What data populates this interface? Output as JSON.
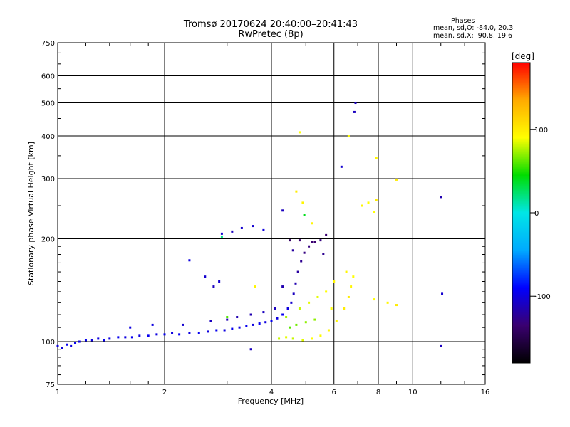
{
  "chart_data": {
    "type": "scatter",
    "title": "Tromsø 20170624 20:40:00–20:41:43",
    "subtitle": "RwPretec (8p)",
    "xlabel": "Frequency [MHz]",
    "ylabel": "Stationary phase Virtual Height [km]",
    "x_scale": "log",
    "y_scale": "log",
    "xlim": [
      1,
      16
    ],
    "ylim": [
      75,
      750
    ],
    "x_ticks": [
      1,
      2,
      4,
      6,
      8,
      10,
      16
    ],
    "y_ticks": [
      75,
      100,
      200,
      300,
      400,
      500,
      600,
      750
    ],
    "grid": true,
    "stats": {
      "heading": "Phases",
      "o_line": "mean, sd,O: -84.0, 20.3",
      "x_line": "mean, sd,X:  90.8, 19.6"
    },
    "colorbar": {
      "label": "[deg]",
      "range": [
        -180,
        180
      ],
      "ticks": [
        100,
        0,
        -100
      ],
      "colors": [
        "#000000",
        "#3a0070",
        "#0000ff",
        "#00aaff",
        "#00e6e6",
        "#00dd00",
        "#ffff00",
        "#ffaa00",
        "#ff0000"
      ]
    },
    "series": [
      {
        "values": [
          [
            1.0,
            97,
            -100
          ],
          [
            1.03,
            96,
            -100
          ],
          [
            1.06,
            98,
            -95
          ],
          [
            1.09,
            97,
            -100
          ],
          [
            1.12,
            99,
            -95
          ],
          [
            1.15,
            100,
            -100
          ],
          [
            1.2,
            101,
            -95
          ],
          [
            1.25,
            101,
            -100
          ],
          [
            1.3,
            102,
            -100
          ],
          [
            1.35,
            101,
            -95
          ],
          [
            1.4,
            102,
            -100
          ],
          [
            1.48,
            103,
            -95
          ],
          [
            1.55,
            103,
            -100
          ],
          [
            1.62,
            103,
            -95
          ],
          [
            1.7,
            104,
            -100
          ],
          [
            1.8,
            104,
            -95
          ],
          [
            1.9,
            105,
            -100
          ],
          [
            2.0,
            105,
            -95
          ],
          [
            2.1,
            106,
            -100
          ],
          [
            2.2,
            105,
            -95
          ],
          [
            2.35,
            106,
            -100
          ],
          [
            2.5,
            106,
            -95
          ],
          [
            2.65,
            107,
            -100
          ],
          [
            2.8,
            108,
            -95
          ],
          [
            2.95,
            108,
            -100
          ],
          [
            3.1,
            109,
            -95
          ],
          [
            3.25,
            110,
            -100
          ],
          [
            3.4,
            111,
            -95
          ],
          [
            3.55,
            112,
            -100
          ],
          [
            3.7,
            113,
            -95
          ],
          [
            3.85,
            114,
            -100
          ],
          [
            4.0,
            115,
            -95
          ],
          [
            4.15,
            117,
            -100
          ],
          [
            4.3,
            120,
            -95
          ],
          [
            4.45,
            125,
            -100
          ],
          [
            4.55,
            130,
            -105
          ],
          [
            4.62,
            138,
            -110
          ],
          [
            4.68,
            148,
            -115
          ],
          [
            4.75,
            160,
            -120
          ],
          [
            4.85,
            172,
            -125
          ],
          [
            4.95,
            182,
            -130
          ],
          [
            5.1,
            190,
            -130
          ],
          [
            5.3,
            196,
            -135
          ],
          [
            5.5,
            198,
            -130
          ],
          [
            1.6,
            110,
            -100
          ],
          [
            1.85,
            112,
            -100
          ],
          [
            2.25,
            112,
            -105
          ],
          [
            2.7,
            115,
            -110
          ],
          [
            3.0,
            116,
            -115
          ],
          [
            3.2,
            118,
            -115
          ],
          [
            3.5,
            120,
            -115
          ],
          [
            3.8,
            122,
            -110
          ],
          [
            4.1,
            125,
            -110
          ],
          [
            2.9,
            207,
            -105
          ],
          [
            3.1,
            210,
            -110
          ],
          [
            3.3,
            215,
            -105
          ],
          [
            3.55,
            218,
            -105
          ],
          [
            3.8,
            212,
            -100
          ],
          [
            4.3,
            242,
            -110
          ],
          [
            4.5,
            198,
            -140
          ],
          [
            4.8,
            198,
            -135
          ],
          [
            5.2,
            196,
            -135
          ],
          [
            5.7,
            205,
            -135
          ],
          [
            6.3,
            325,
            -105
          ],
          [
            6.9,
            500,
            -110
          ],
          [
            6.85,
            470,
            -110
          ],
          [
            12.0,
            265,
            -115
          ],
          [
            12.1,
            138,
            -105
          ],
          [
            12.0,
            97,
            -110
          ],
          [
            2.35,
            173,
            -100
          ],
          [
            2.6,
            155,
            -105
          ],
          [
            2.75,
            145,
            -110
          ],
          [
            2.85,
            150,
            -105
          ],
          [
            3.5,
            95,
            -110
          ],
          [
            4.6,
            185,
            -120
          ],
          [
            5.6,
            180,
            -125
          ],
          [
            4.3,
            145,
            -115
          ]
        ]
      },
      {
        "values": [
          [
            4.2,
            102,
            80
          ],
          [
            4.4,
            103,
            85
          ],
          [
            4.6,
            102,
            80
          ],
          [
            4.9,
            101,
            85
          ],
          [
            5.2,
            102,
            90
          ],
          [
            5.5,
            104,
            90
          ],
          [
            5.8,
            108,
            95
          ],
          [
            6.1,
            115,
            95
          ],
          [
            6.4,
            125,
            100
          ],
          [
            6.6,
            135,
            100
          ],
          [
            6.7,
            145,
            95
          ],
          [
            6.8,
            155,
            90
          ],
          [
            4.5,
            110,
            60
          ],
          [
            4.7,
            112,
            65
          ],
          [
            5.0,
            114,
            70
          ],
          [
            5.3,
            116,
            70
          ],
          [
            4.4,
            118,
            75
          ],
          [
            4.8,
            125,
            80
          ],
          [
            5.1,
            130,
            85
          ],
          [
            5.4,
            135,
            85
          ],
          [
            5.7,
            140,
            90
          ],
          [
            6.0,
            150,
            95
          ],
          [
            4.7,
            275,
            100
          ],
          [
            4.8,
            410,
            90
          ],
          [
            4.9,
            255,
            95
          ],
          [
            4.95,
            235,
            40
          ],
          [
            5.2,
            222,
            95
          ],
          [
            6.6,
            400,
            90
          ],
          [
            7.2,
            250,
            95
          ],
          [
            7.5,
            255,
            90
          ],
          [
            7.8,
            240,
            90
          ],
          [
            7.9,
            345,
            95
          ],
          [
            7.9,
            260,
            100
          ],
          [
            9.0,
            298,
            100
          ],
          [
            3.6,
            145,
            95
          ],
          [
            2.9,
            203,
            20
          ],
          [
            3.0,
            118,
            60
          ],
          [
            7.8,
            133,
            90
          ],
          [
            8.5,
            130,
            95
          ],
          [
            9.0,
            128,
            100
          ],
          [
            6.5,
            160,
            95
          ],
          [
            5.9,
            125,
            90
          ]
        ]
      }
    ]
  }
}
